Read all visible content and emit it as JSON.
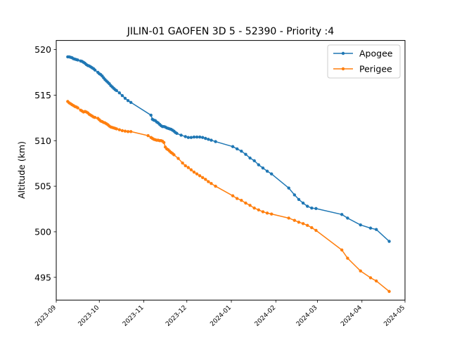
{
  "chart_data": {
    "type": "line",
    "title": "JILIN-01 GAOFEN 3D 5 - 52390 - Priority :4",
    "xlabel": "",
    "ylabel": "Altitude (km)",
    "ylim": [
      492.5,
      521
    ],
    "xlim": [
      "2023-09-01",
      "2024-05-01"
    ],
    "y_ticks": [
      495,
      500,
      505,
      510,
      515,
      520
    ],
    "x_ticks": [
      "2023-09",
      "2023-10",
      "2023-11",
      "2023-12",
      "2024-01",
      "2024-02",
      "2024-03",
      "2024-04",
      "2024-05"
    ],
    "grid": false,
    "legend_position": "top-right",
    "series": [
      {
        "name": "Apogee",
        "color": "#1f77b4",
        "points": [
          [
            "2023-09-09",
            519.2
          ],
          [
            "2023-09-10",
            519.2
          ],
          [
            "2023-09-11",
            519.15
          ],
          [
            "2023-09-12",
            519.1
          ],
          [
            "2023-09-13",
            519.0
          ],
          [
            "2023-09-14",
            518.95
          ],
          [
            "2023-09-15",
            518.9
          ],
          [
            "2023-09-16",
            518.85
          ],
          [
            "2023-09-18",
            518.75
          ],
          [
            "2023-09-19",
            518.7
          ],
          [
            "2023-09-20",
            518.6
          ],
          [
            "2023-09-21",
            518.5
          ],
          [
            "2023-09-22",
            518.35
          ],
          [
            "2023-09-23",
            518.25
          ],
          [
            "2023-09-24",
            518.2
          ],
          [
            "2023-09-25",
            518.1
          ],
          [
            "2023-09-26",
            518.0
          ],
          [
            "2023-09-27",
            517.9
          ],
          [
            "2023-09-28",
            517.75
          ],
          [
            "2023-09-30",
            517.5
          ],
          [
            "2023-10-01",
            517.35
          ],
          [
            "2023-10-02",
            517.25
          ],
          [
            "2023-10-03",
            517.1
          ],
          [
            "2023-10-04",
            516.9
          ],
          [
            "2023-10-05",
            516.7
          ],
          [
            "2023-10-06",
            516.55
          ],
          [
            "2023-10-07",
            516.4
          ],
          [
            "2023-10-08",
            516.25
          ],
          [
            "2023-10-09",
            516.05
          ],
          [
            "2023-10-10",
            515.9
          ],
          [
            "2023-10-11",
            515.75
          ],
          [
            "2023-10-12",
            515.6
          ],
          [
            "2023-10-13",
            515.5
          ],
          [
            "2023-10-15",
            515.25
          ],
          [
            "2023-10-17",
            514.95
          ],
          [
            "2023-10-19",
            514.65
          ],
          [
            "2023-10-21",
            514.4
          ],
          [
            "2023-10-23",
            514.2
          ],
          [
            "2023-11-06",
            512.8
          ],
          [
            "2023-11-07",
            512.35
          ],
          [
            "2023-11-08",
            512.25
          ],
          [
            "2023-11-09",
            512.2
          ],
          [
            "2023-11-10",
            512.05
          ],
          [
            "2023-11-11",
            511.95
          ],
          [
            "2023-11-12",
            511.8
          ],
          [
            "2023-11-13",
            511.65
          ],
          [
            "2023-11-14",
            511.55
          ],
          [
            "2023-11-15",
            511.55
          ],
          [
            "2023-11-16",
            511.5
          ],
          [
            "2023-11-17",
            511.4
          ],
          [
            "2023-11-18",
            511.35
          ],
          [
            "2023-11-19",
            511.3
          ],
          [
            "2023-11-20",
            511.25
          ],
          [
            "2023-11-21",
            511.15
          ],
          [
            "2023-11-22",
            511.05
          ],
          [
            "2023-11-23",
            510.9
          ],
          [
            "2023-11-24",
            510.8
          ],
          [
            "2023-11-27",
            510.6
          ],
          [
            "2023-11-30",
            510.45
          ],
          [
            "2023-12-02",
            510.35
          ],
          [
            "2023-12-04",
            510.35
          ],
          [
            "2023-12-06",
            510.4
          ],
          [
            "2023-12-08",
            510.4
          ],
          [
            "2023-12-10",
            510.4
          ],
          [
            "2023-12-12",
            510.35
          ],
          [
            "2023-12-14",
            510.25
          ],
          [
            "2023-12-16",
            510.15
          ],
          [
            "2023-12-18",
            510.05
          ],
          [
            "2023-12-21",
            509.9
          ],
          [
            "2024-01-02",
            509.35
          ],
          [
            "2024-01-05",
            509.1
          ],
          [
            "2024-01-08",
            508.85
          ],
          [
            "2024-01-11",
            508.5
          ],
          [
            "2024-01-14",
            508.1
          ],
          [
            "2024-01-17",
            507.8
          ],
          [
            "2024-01-20",
            507.35
          ],
          [
            "2024-01-23",
            507.0
          ],
          [
            "2024-01-26",
            506.65
          ],
          [
            "2024-01-29",
            506.35
          ],
          [
            "2024-02-10",
            504.8
          ],
          [
            "2024-02-14",
            504.05
          ],
          [
            "2024-02-17",
            503.55
          ],
          [
            "2024-02-20",
            503.15
          ],
          [
            "2024-02-23",
            502.8
          ],
          [
            "2024-02-26",
            502.6
          ],
          [
            "2024-02-29",
            502.55
          ],
          [
            "2024-03-18",
            501.9
          ],
          [
            "2024-03-22",
            501.5
          ],
          [
            "2024-03-31",
            500.75
          ],
          [
            "2024-04-07",
            500.4
          ],
          [
            "2024-04-11",
            500.25
          ],
          [
            "2024-04-20",
            498.95
          ]
        ]
      },
      {
        "name": "Perigee",
        "color": "#ff7f0e",
        "points": [
          [
            "2023-09-09",
            514.3
          ],
          [
            "2023-09-10",
            514.15
          ],
          [
            "2023-09-11",
            514.05
          ],
          [
            "2023-09-12",
            513.95
          ],
          [
            "2023-09-13",
            513.85
          ],
          [
            "2023-09-14",
            513.75
          ],
          [
            "2023-09-15",
            513.7
          ],
          [
            "2023-09-16",
            513.6
          ],
          [
            "2023-09-18",
            513.35
          ],
          [
            "2023-09-19",
            513.25
          ],
          [
            "2023-09-20",
            513.15
          ],
          [
            "2023-09-21",
            513.2
          ],
          [
            "2023-09-22",
            513.15
          ],
          [
            "2023-09-23",
            513.05
          ],
          [
            "2023-09-24",
            512.9
          ],
          [
            "2023-09-25",
            512.8
          ],
          [
            "2023-09-26",
            512.7
          ],
          [
            "2023-09-27",
            512.6
          ],
          [
            "2023-09-28",
            512.55
          ],
          [
            "2023-09-30",
            512.45
          ],
          [
            "2023-10-01",
            512.3
          ],
          [
            "2023-10-02",
            512.15
          ],
          [
            "2023-10-03",
            512.1
          ],
          [
            "2023-10-04",
            512.0
          ],
          [
            "2023-10-05",
            511.95
          ],
          [
            "2023-10-06",
            511.85
          ],
          [
            "2023-10-07",
            511.75
          ],
          [
            "2023-10-08",
            511.6
          ],
          [
            "2023-10-09",
            511.5
          ],
          [
            "2023-10-10",
            511.45
          ],
          [
            "2023-10-11",
            511.4
          ],
          [
            "2023-10-12",
            511.35
          ],
          [
            "2023-10-13",
            511.3
          ],
          [
            "2023-10-15",
            511.2
          ],
          [
            "2023-10-17",
            511.1
          ],
          [
            "2023-10-19",
            511.05
          ],
          [
            "2023-10-21",
            511.0
          ],
          [
            "2023-10-23",
            511.0
          ],
          [
            "2023-11-04",
            510.55
          ],
          [
            "2023-11-06",
            510.35
          ],
          [
            "2023-11-07",
            510.25
          ],
          [
            "2023-11-08",
            510.15
          ],
          [
            "2023-11-09",
            510.1
          ],
          [
            "2023-11-10",
            510.05
          ],
          [
            "2023-11-11",
            510.05
          ],
          [
            "2023-11-12",
            510.0
          ],
          [
            "2023-11-13",
            510.0
          ],
          [
            "2023-11-14",
            509.95
          ],
          [
            "2023-11-15",
            509.8
          ],
          [
            "2023-11-16",
            509.3
          ],
          [
            "2023-11-17",
            509.1
          ],
          [
            "2023-11-18",
            509.0
          ],
          [
            "2023-11-19",
            508.85
          ],
          [
            "2023-11-20",
            508.7
          ],
          [
            "2023-11-21",
            508.6
          ],
          [
            "2023-11-22",
            508.45
          ],
          [
            "2023-11-25",
            508.05
          ],
          [
            "2023-11-28",
            507.55
          ],
          [
            "2023-11-30",
            507.25
          ],
          [
            "2023-12-02",
            507.05
          ],
          [
            "2023-12-04",
            506.8
          ],
          [
            "2023-12-06",
            506.55
          ],
          [
            "2023-12-08",
            506.35
          ],
          [
            "2023-12-10",
            506.15
          ],
          [
            "2023-12-12",
            505.95
          ],
          [
            "2023-12-14",
            505.75
          ],
          [
            "2023-12-16",
            505.5
          ],
          [
            "2023-12-18",
            505.3
          ],
          [
            "2023-12-21",
            505.0
          ],
          [
            "2024-01-02",
            503.95
          ],
          [
            "2024-01-05",
            503.65
          ],
          [
            "2024-01-08",
            503.45
          ],
          [
            "2024-01-11",
            503.15
          ],
          [
            "2024-01-14",
            502.9
          ],
          [
            "2024-01-17",
            502.6
          ],
          [
            "2024-01-20",
            502.4
          ],
          [
            "2024-01-23",
            502.2
          ],
          [
            "2024-01-26",
            502.05
          ],
          [
            "2024-01-29",
            501.95
          ],
          [
            "2024-02-10",
            501.5
          ],
          [
            "2024-02-14",
            501.25
          ],
          [
            "2024-02-17",
            501.05
          ],
          [
            "2024-02-20",
            500.9
          ],
          [
            "2024-02-23",
            500.7
          ],
          [
            "2024-02-26",
            500.45
          ],
          [
            "2024-02-29",
            500.15
          ],
          [
            "2024-03-18",
            498.0
          ],
          [
            "2024-03-22",
            497.1
          ],
          [
            "2024-03-31",
            495.7
          ],
          [
            "2024-04-07",
            494.95
          ],
          [
            "2024-04-11",
            494.6
          ],
          [
            "2024-04-20",
            493.45
          ]
        ]
      }
    ]
  }
}
